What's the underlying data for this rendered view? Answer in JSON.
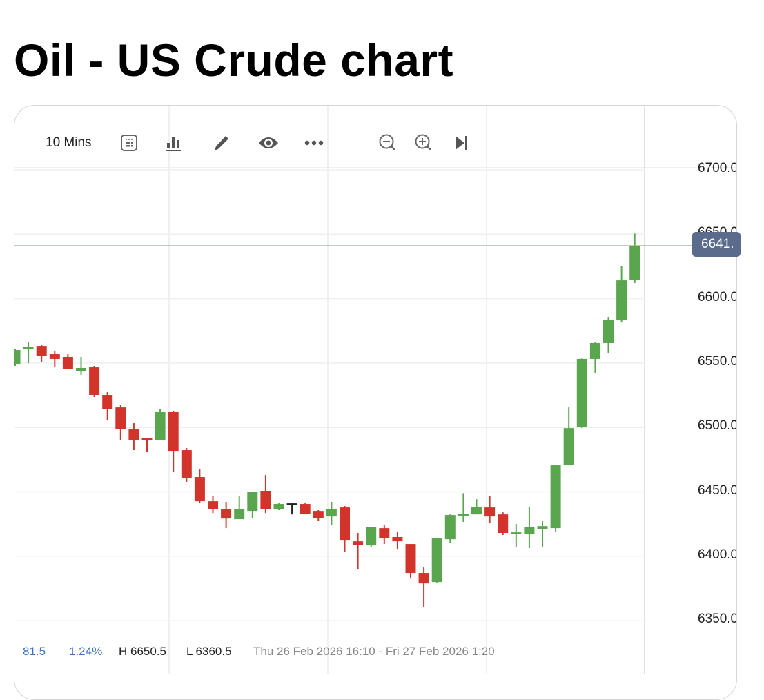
{
  "page_title": "Oil - US Crude chart",
  "toolbar": {
    "timeframe": "10 Mins",
    "icons": [
      "calendar-icon",
      "bar-chart-icon",
      "pencil-icon",
      "eye-icon",
      "more-icon",
      "zoom-out-icon",
      "zoom-in-icon",
      "skip-to-end-icon"
    ]
  },
  "current_price_label": "6641.",
  "footer": {
    "change": "81.5",
    "change_pct": "1.24%",
    "high": "H 6650.5",
    "low": "L 6360.5",
    "range": "Thu 26 Feb 2026 16:10 - Fri 27 Feb 2026 1:20"
  },
  "colors": {
    "up": "#5aa64f",
    "down": "#d2342c",
    "doji": "#222222",
    "price_line": "#9aa3b5",
    "price_tag": "#5b6b8c",
    "accent_text": "#3f73c2"
  },
  "chart_data": {
    "type": "candlestick",
    "interval": "10 Mins",
    "y_ticks": [
      "6700.0",
      "6650.0",
      "6600.0",
      "6550.0",
      "6500.0",
      "6450.0",
      "6400.0",
      "6350.0"
    ],
    "ylim": [
      6335,
      6715
    ],
    "grid": true,
    "current_price": 6641,
    "candles": [
      [
        6548.9,
        6560.1,
        6561.2,
        6547.8
      ],
      [
        6561.2,
        6562.8,
        6566.5,
        6549.9
      ],
      [
        6563.3,
        6555.3,
        6563.9,
        6551.0
      ],
      [
        6556.9,
        6553.2,
        6559.6,
        6546.7
      ],
      [
        6554.8,
        6545.6,
        6556.9,
        6545.1
      ],
      [
        6544.0,
        6546.2,
        6554.8,
        6540.8
      ],
      [
        6546.7,
        6525.3,
        6547.8,
        6523.7
      ],
      [
        6525.3,
        6514.5,
        6527.4,
        6506.0
      ],
      [
        6515.6,
        6498.5,
        6517.8,
        6489.9
      ],
      [
        6498.5,
        6490.4,
        6503.3,
        6482.4
      ],
      [
        6492.0,
        6489.9,
        6492.0,
        6480.8
      ],
      [
        6490.4,
        6511.9,
        6514.5,
        6489.9
      ],
      [
        6511.9,
        6481.3,
        6512.4,
        6465.2
      ],
      [
        6482.4,
        6461.0,
        6484.0,
        6457.8
      ],
      [
        6461.5,
        6442.7,
        6467.4,
        6441.6
      ],
      [
        6442.7,
        6436.8,
        6447.0,
        6433.6
      ],
      [
        6436.8,
        6429.3,
        6442.2,
        6421.8
      ],
      [
        6428.8,
        6436.8,
        6446.5,
        6428.8
      ],
      [
        6435.2,
        6450.2,
        6450.2,
        6429.9
      ],
      [
        6450.8,
        6436.8,
        6463.1,
        6433.6
      ],
      [
        6436.8,
        6440.6,
        6441.1,
        6435.8
      ],
      [
        6441.1,
        6441.1,
        6441.6,
        6432.5
      ],
      [
        6440.6,
        6433.1,
        6441.1,
        6432.5
      ],
      [
        6435.2,
        6429.9,
        6435.8,
        6427.7
      ],
      [
        6430.9,
        6436.8,
        6442.2,
        6424.5
      ],
      [
        6437.9,
        6412.7,
        6439.0,
        6403.6
      ],
      [
        6411.6,
        6408.9,
        6418.1,
        6390.2
      ],
      [
        6408.4,
        6422.9,
        6422.9,
        6407.3
      ],
      [
        6421.8,
        6413.8,
        6424.5,
        6409.5
      ],
      [
        6414.9,
        6411.6,
        6418.6,
        6405.7
      ],
      [
        6409.5,
        6387.0,
        6409.5,
        6383.2
      ],
      [
        6387.0,
        6378.9,
        6391.3,
        6360.5
      ],
      [
        6380.0,
        6413.8,
        6414.3,
        6379.5
      ],
      [
        6413.2,
        6432.0,
        6432.5,
        6410.6
      ],
      [
        6431.5,
        6433.1,
        6449.0,
        6426.7
      ],
      [
        6432.5,
        6438.4,
        6444.3,
        6432.5
      ],
      [
        6437.9,
        6430.9,
        6446.5,
        6426.1
      ],
      [
        6432.5,
        6418.1,
        6434.1,
        6416.5
      ],
      [
        6417.5,
        6418.6,
        6425.0,
        6407.3
      ],
      [
        6417.5,
        6422.9,
        6438.4,
        6406.3
      ],
      [
        6421.3,
        6423.4,
        6427.7,
        6407.3
      ],
      [
        6421.8,
        6470.6,
        6470.6,
        6419.1
      ],
      [
        6471.1,
        6499.5,
        6515.6,
        6470.6
      ],
      [
        6500.1,
        6553.2,
        6554.2,
        6499.5
      ],
      [
        6553.2,
        6565.5,
        6566.0,
        6541.9
      ],
      [
        6565.5,
        6583.2,
        6585.8,
        6558.0
      ],
      [
        6583.2,
        6614.2,
        6625.0,
        6581.5
      ],
      [
        6614.8,
        6641.0,
        6650.5,
        6612.1
      ]
    ],
    "candle_fields": [
      "open",
      "close",
      "high",
      "low"
    ]
  }
}
